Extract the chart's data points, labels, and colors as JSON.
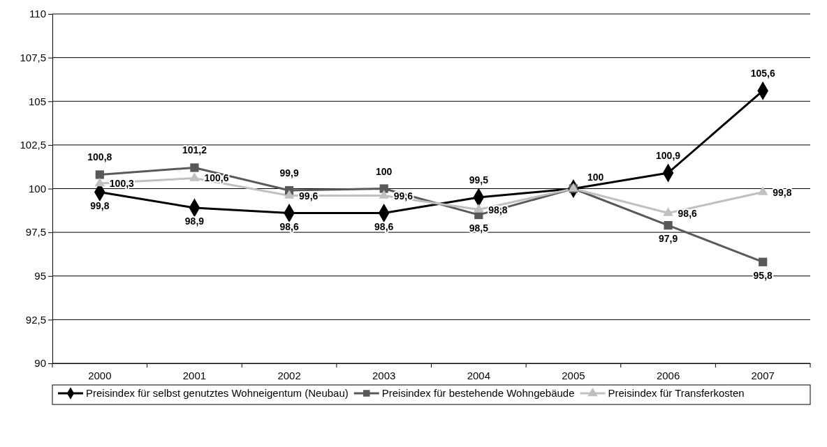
{
  "chart_data": {
    "type": "line",
    "categories": [
      "2000",
      "2001",
      "2002",
      "2003",
      "2004",
      "2005",
      "2006",
      "2007"
    ],
    "ylim": [
      90,
      110
    ],
    "yticks": [
      90,
      {
        "value": 92.5,
        "label": "92,5"
      },
      95,
      {
        "value": 97.5,
        "label": "97,5"
      },
      100,
      {
        "value": 102.5,
        "label": "102,5"
      },
      105,
      {
        "value": 107.5,
        "label": "107,5"
      },
      110
    ],
    "grid": "y",
    "legend": "bottom",
    "line_style": "solid",
    "series": [
      {
        "name": "Preisindex für selbst genutztes Wohneigentum (Neubau)",
        "color": "#000000",
        "marker": "diamond",
        "values": [
          99.8,
          98.9,
          98.6,
          98.6,
          99.5,
          100,
          100.9,
          105.6
        ],
        "value_labels": [
          "99,8",
          "98,9",
          "98,6",
          "98,6",
          "99,5",
          null,
          "100,9",
          "105,6"
        ]
      },
      {
        "name": "Preisindex für bestehende Wohngebäude",
        "color": "#595959",
        "marker": "square",
        "values": [
          100.8,
          101.2,
          99.9,
          100,
          98.5,
          100,
          97.9,
          95.8
        ],
        "value_labels": [
          "100,8",
          "101,2",
          "99,9",
          "100",
          "98,5",
          null,
          "97,9",
          "95,8"
        ]
      },
      {
        "name": "Preisindex für Transferkosten",
        "color": "#c0c0c0",
        "marker": "triangle",
        "values": [
          100.3,
          100.6,
          99.6,
          99.6,
          98.8,
          100,
          98.6,
          99.8
        ],
        "value_labels": [
          "100,3",
          "100,6",
          "99,6",
          "99,6",
          "98,8",
          "100",
          "98,6",
          "99,8"
        ]
      }
    ]
  }
}
